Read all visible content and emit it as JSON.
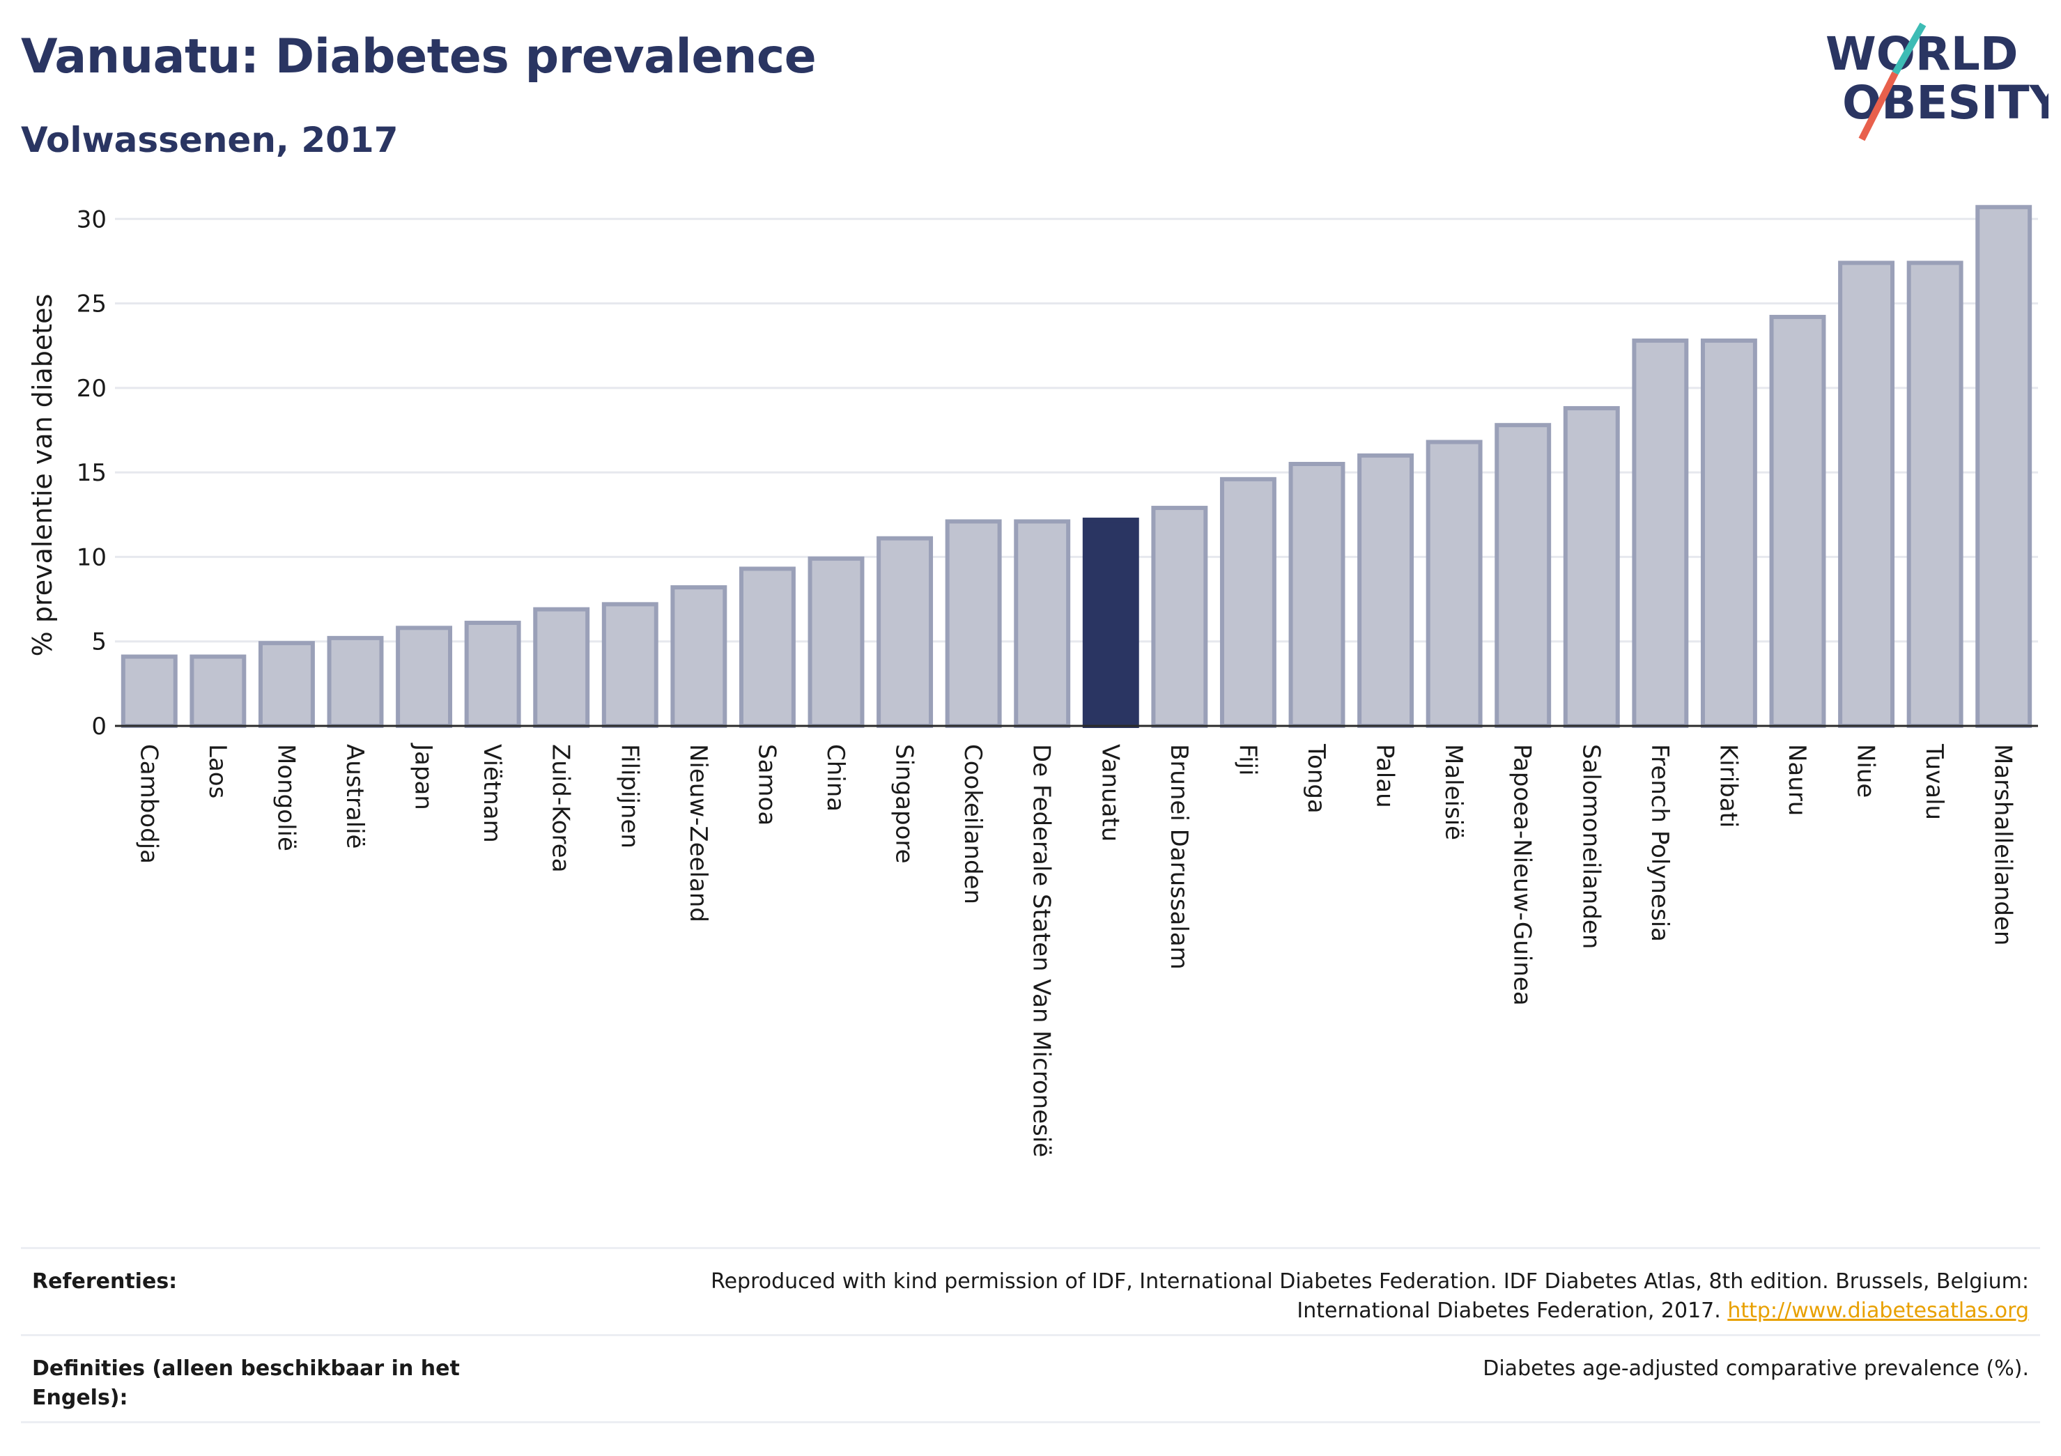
{
  "header": {
    "title": "Vanuatu: Diabetes prevalence",
    "subtitle": "Volwassenen, 2017"
  },
  "logo": {
    "line1": "WORLD",
    "line2": "OBESITY",
    "slash_color_top": "#3dbcb5",
    "slash_color_bottom": "#e8604c",
    "text_color": "#2a3562"
  },
  "colors": {
    "bar_default": "#c0c3d0",
    "bar_border": "#9aa0b8",
    "bar_highlight": "#2a3562",
    "grid": "#e6e8ee",
    "axis": "#2a2a2a"
  },
  "chart_data": {
    "type": "bar",
    "ylabel": "% prevalentie van diabetes",
    "xlabel": "",
    "ylim": [
      0,
      31
    ],
    "yticks": [
      0,
      5,
      10,
      15,
      20,
      25,
      30
    ],
    "grid": true,
    "highlight": "Vanuatu",
    "categories": [
      "Cambodja",
      "Laos",
      "Mongolië",
      "Australië",
      "Japan",
      "Viëtnam",
      "Zuid-Korea",
      "Filipijnen",
      "Nieuw-Zeeland",
      "Samoa",
      "China",
      "Singapore",
      "Cookeilanden",
      "De Federale Staten Van Micronesië",
      "Vanuatu",
      "Brunei Darussalam",
      "Fiji",
      "Tonga",
      "Palau",
      "Maleisië",
      "Papoea-Nieuw-Guinea",
      "Salomoneilanden",
      "French Polynesia",
      "Kiribati",
      "Nauru",
      "Niue",
      "Tuvalu",
      "Marshalleilanden"
    ],
    "values": [
      4.1,
      4.1,
      4.9,
      5.2,
      5.8,
      6.1,
      6.9,
      7.2,
      8.2,
      9.3,
      9.9,
      11.1,
      12.1,
      12.1,
      12.2,
      12.9,
      14.6,
      15.5,
      16.0,
      16.8,
      17.8,
      18.8,
      22.8,
      22.8,
      24.2,
      27.4,
      27.4,
      30.7
    ]
  },
  "references": {
    "refs_label": "Referenties:",
    "refs_text": "Reproduced with kind permission of IDF, International Diabetes Federation. IDF Diabetes Atlas, 8th edition. Brussels, Belgium: International Diabetes Federation, 2017.",
    "refs_link": "http://www.diabetesatlas.org",
    "defs_label": "Definities (alleen beschikbaar in het Engels):",
    "defs_text": "Diabetes age-adjusted comparative prevalence (%)."
  }
}
